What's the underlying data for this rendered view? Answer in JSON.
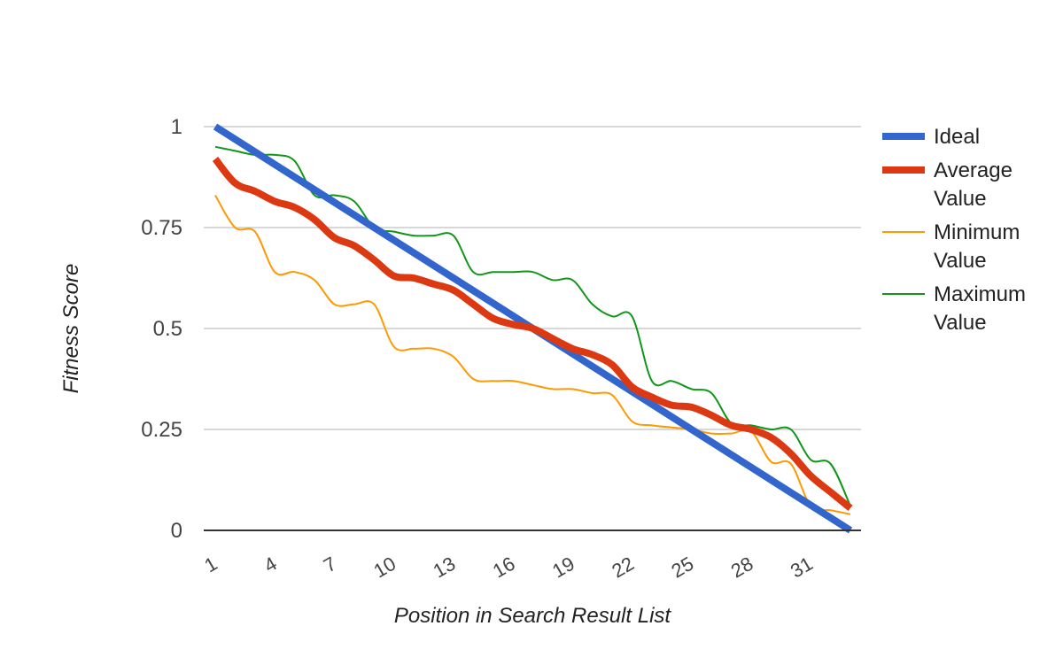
{
  "chart_data": {
    "type": "line",
    "xlabel": "Position in Search Result List",
    "ylabel": "Fitness Score",
    "x": [
      1,
      2,
      3,
      4,
      5,
      6,
      7,
      8,
      9,
      10,
      11,
      12,
      13,
      14,
      15,
      16,
      17,
      18,
      19,
      20,
      21,
      22,
      23,
      24,
      25,
      26,
      27,
      28,
      29,
      30,
      31,
      32,
      33
    ],
    "xlim": [
      1,
      33
    ],
    "ylim": [
      0,
      1
    ],
    "yticks": [
      0,
      0.25,
      0.5,
      0.75,
      1
    ],
    "yticklabels": [
      "0",
      "0.25",
      "0.5",
      "0.75",
      "1"
    ],
    "xticks": [
      1,
      4,
      7,
      10,
      13,
      16,
      19,
      22,
      25,
      28,
      31
    ],
    "xticklabels": [
      "1",
      "4",
      "7",
      "10",
      "13",
      "16",
      "19",
      "22",
      "25",
      "28",
      "31"
    ],
    "grid": true,
    "legend_position": "right",
    "series": [
      {
        "name": "Ideal",
        "color": "#3366cc",
        "width": 8,
        "values": [
          1.0,
          0.969,
          0.938,
          0.906,
          0.875,
          0.844,
          0.813,
          0.781,
          0.75,
          0.719,
          0.688,
          0.656,
          0.625,
          0.594,
          0.563,
          0.531,
          0.5,
          0.469,
          0.438,
          0.406,
          0.375,
          0.344,
          0.313,
          0.281,
          0.25,
          0.219,
          0.188,
          0.156,
          0.125,
          0.094,
          0.063,
          0.031,
          0.0
        ]
      },
      {
        "name": "Average Value",
        "color": "#dc3912",
        "width": 8,
        "values": [
          0.92,
          0.86,
          0.84,
          0.815,
          0.8,
          0.77,
          0.725,
          0.705,
          0.67,
          0.63,
          0.625,
          0.61,
          0.595,
          0.56,
          0.525,
          0.51,
          0.5,
          0.475,
          0.45,
          0.435,
          0.41,
          0.355,
          0.33,
          0.31,
          0.305,
          0.285,
          0.26,
          0.25,
          0.23,
          0.19,
          0.135,
          0.095,
          0.055
        ]
      },
      {
        "name": "Minimum Value",
        "color": "#ff9900",
        "width": 2,
        "values": [
          0.83,
          0.75,
          0.74,
          0.64,
          0.64,
          0.62,
          0.56,
          0.56,
          0.56,
          0.455,
          0.45,
          0.45,
          0.43,
          0.375,
          0.37,
          0.37,
          0.36,
          0.35,
          0.35,
          0.34,
          0.335,
          0.27,
          0.26,
          0.255,
          0.25,
          0.24,
          0.24,
          0.245,
          0.17,
          0.165,
          0.06,
          0.05,
          0.04
        ]
      },
      {
        "name": "Maximum Value",
        "color": "#109618",
        "width": 2,
        "values": [
          0.95,
          0.94,
          0.93,
          0.93,
          0.915,
          0.83,
          0.83,
          0.815,
          0.75,
          0.74,
          0.73,
          0.73,
          0.73,
          0.64,
          0.64,
          0.64,
          0.64,
          0.62,
          0.62,
          0.56,
          0.53,
          0.53,
          0.37,
          0.37,
          0.35,
          0.34,
          0.265,
          0.26,
          0.25,
          0.25,
          0.175,
          0.165,
          0.06
        ]
      }
    ]
  }
}
